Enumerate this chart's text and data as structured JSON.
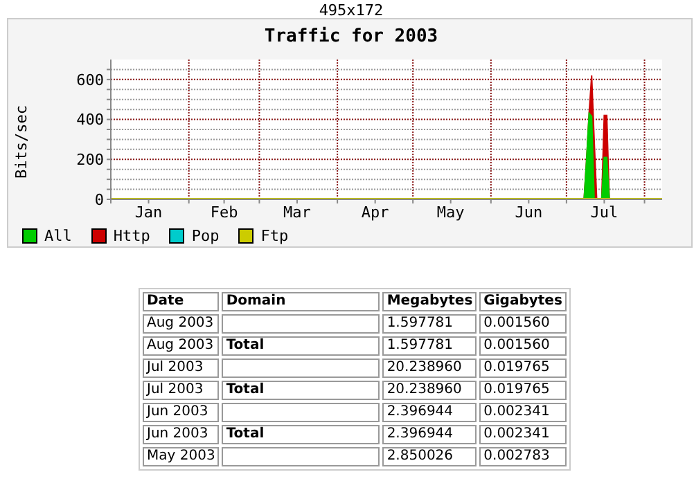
{
  "chart_data": [
    {
      "type": "area",
      "title": "Traffic for 2003",
      "ylabel": "Bits/sec",
      "annotations": [
        "495x172"
      ],
      "x": [
        "2003-01-01",
        "2003-07-08",
        "2003-07-09",
        "2003-07-10",
        "2003-07-11",
        "2003-07-12",
        "2003-07-13",
        "2003-07-15",
        "2003-07-16",
        "2003-07-17",
        "2003-07-18",
        "2003-08-08"
      ],
      "series": [
        {
          "name": "All",
          "color": "#00cc00",
          "values": [
            0,
            0,
            200,
            430,
            415,
            0,
            0,
            0,
            210,
            210,
            0,
            0
          ]
        },
        {
          "name": "Http",
          "color": "#cc0000",
          "values": [
            0,
            0,
            200,
            430,
            620,
            300,
            0,
            0,
            420,
            420,
            0,
            0
          ]
        },
        {
          "name": "Pop",
          "color": "#00cccc",
          "values": [
            null,
            null,
            null,
            null,
            null,
            null,
            null,
            null,
            null,
            null,
            null,
            null
          ]
        },
        {
          "name": "Ftp",
          "type": "line",
          "color": "#cccc00",
          "values": [
            0,
            0,
            0,
            0,
            0,
            0,
            0,
            0,
            0,
            0,
            0,
            0
          ]
        }
      ],
      "xlim": [
        "2003-01-01",
        "2003-08-08"
      ],
      "xticks": [
        {
          "value": "2003-01-01",
          "label": null
        },
        {
          "value": "2003-01-16",
          "label": "Jan"
        },
        {
          "value": "2003-02-01",
          "label": null
        },
        {
          "value": "2003-02-15",
          "label": "Feb"
        },
        {
          "value": "2003-03-01",
          "label": null
        },
        {
          "value": "2003-03-16",
          "label": "Mar"
        },
        {
          "value": "2003-04-01",
          "label": null
        },
        {
          "value": "2003-04-16",
          "label": "Apr"
        },
        {
          "value": "2003-05-01",
          "label": null
        },
        {
          "value": "2003-05-16",
          "label": "May"
        },
        {
          "value": "2003-06-01",
          "label": null
        },
        {
          "value": "2003-06-16",
          "label": "Jun"
        },
        {
          "value": "2003-07-01",
          "label": null
        },
        {
          "value": "2003-07-16",
          "label": "Jul"
        },
        {
          "value": "2003-08-01",
          "label": null
        }
      ],
      "ylim": [
        0,
        700
      ],
      "yticks": [
        0,
        {
          "value": 50,
          "label": null
        },
        {
          "value": 100,
          "label": null
        },
        {
          "value": 150,
          "label": null
        },
        200,
        {
          "value": 250,
          "label": null
        },
        {
          "value": 300,
          "label": null
        },
        {
          "value": 350,
          "label": null
        },
        400,
        {
          "value": 450,
          "label": null
        },
        {
          "value": 500,
          "label": null
        },
        {
          "value": 550,
          "label": null
        },
        600,
        {
          "value": 650,
          "label": null
        }
      ],
      "grid": true,
      "legend": "bottom"
    },
    {
      "type": "other",
      "categories": [
        "Date",
        "Domain",
        "Megabytes",
        "Gigabytes"
      ],
      "cell_labels": [
        [
          "Aug 2003",
          null,
          "1.597781",
          "0.001560"
        ],
        [
          "Aug 2003",
          "Total",
          "1.597781",
          "0.001560"
        ],
        [
          "Jul 2003",
          null,
          "20.238960",
          "0.019765"
        ],
        [
          "Jul 2003",
          "Total",
          "20.238960",
          "0.019765"
        ],
        [
          "Jun 2003",
          null,
          "2.396944",
          "0.002341"
        ],
        [
          "Jun 2003",
          "Total",
          "2.396944",
          "0.002341"
        ],
        [
          "May 2003",
          null,
          "2.850026",
          "0.002783"
        ]
      ]
    }
  ]
}
